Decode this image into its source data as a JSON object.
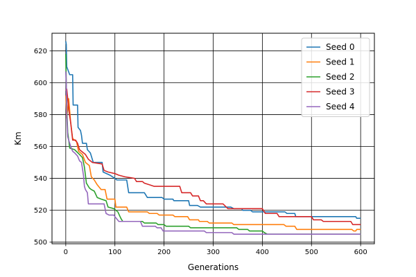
{
  "chart_data": {
    "type": "line",
    "title": "",
    "xlabel": "Generations",
    "ylabel": "Km",
    "xlim": [
      -28,
      628
    ],
    "ylim": [
      499,
      631
    ],
    "xticks": [
      0,
      100,
      200,
      300,
      400,
      500,
      600
    ],
    "yticks": [
      500,
      520,
      540,
      560,
      580,
      600,
      620
    ],
    "grid": true,
    "legend_position": "top-right",
    "series": [
      {
        "name": "Seed 0",
        "color": "#1f77b4",
        "points": [
          [
            0,
            626
          ],
          [
            1,
            624
          ],
          [
            2,
            610
          ],
          [
            8,
            605
          ],
          [
            14,
            605
          ],
          [
            15,
            586
          ],
          [
            24,
            586
          ],
          [
            25,
            572
          ],
          [
            30,
            570
          ],
          [
            32,
            567
          ],
          [
            34,
            562
          ],
          [
            42,
            562
          ],
          [
            44,
            558
          ],
          [
            50,
            556
          ],
          [
            56,
            550
          ],
          [
            74,
            550
          ],
          [
            76,
            544
          ],
          [
            90,
            542
          ],
          [
            100,
            540
          ],
          [
            104,
            539
          ],
          [
            124,
            539
          ],
          [
            128,
            531
          ],
          [
            160,
            531
          ],
          [
            166,
            528
          ],
          [
            196,
            528
          ],
          [
            200,
            527
          ],
          [
            218,
            527
          ],
          [
            220,
            526
          ],
          [
            250,
            526
          ],
          [
            252,
            523
          ],
          [
            268,
            523
          ],
          [
            274,
            522
          ],
          [
            336,
            522
          ],
          [
            342,
            521
          ],
          [
            358,
            521
          ],
          [
            360,
            520
          ],
          [
            376,
            520
          ],
          [
            380,
            519
          ],
          [
            446,
            519
          ],
          [
            450,
            518
          ],
          [
            466,
            518
          ],
          [
            468,
            516
          ],
          [
            590,
            516
          ],
          [
            592,
            515
          ],
          [
            600,
            515
          ]
        ]
      },
      {
        "name": "Seed 1",
        "color": "#ff7f0e",
        "points": [
          [
            0,
            592
          ],
          [
            2,
            578
          ],
          [
            6,
            590
          ],
          [
            10,
            575
          ],
          [
            14,
            565
          ],
          [
            22,
            563
          ],
          [
            26,
            557
          ],
          [
            34,
            555
          ],
          [
            40,
            550
          ],
          [
            48,
            548
          ],
          [
            52,
            541
          ],
          [
            58,
            539
          ],
          [
            64,
            536
          ],
          [
            72,
            533
          ],
          [
            80,
            533
          ],
          [
            84,
            527
          ],
          [
            100,
            527
          ],
          [
            102,
            522
          ],
          [
            124,
            522
          ],
          [
            128,
            519
          ],
          [
            166,
            519
          ],
          [
            170,
            518
          ],
          [
            186,
            518
          ],
          [
            190,
            517
          ],
          [
            218,
            517
          ],
          [
            222,
            516
          ],
          [
            248,
            516
          ],
          [
            252,
            514
          ],
          [
            270,
            514
          ],
          [
            272,
            513
          ],
          [
            288,
            513
          ],
          [
            292,
            512
          ],
          [
            338,
            512
          ],
          [
            342,
            511
          ],
          [
            444,
            511
          ],
          [
            448,
            510
          ],
          [
            466,
            510
          ],
          [
            470,
            508
          ],
          [
            582,
            508
          ],
          [
            586,
            507
          ],
          [
            590,
            507
          ],
          [
            592,
            508
          ],
          [
            600,
            508
          ]
        ]
      },
      {
        "name": "Seed 2",
        "color": "#2ca02c",
        "points": [
          [
            0,
            618
          ],
          [
            1,
            600
          ],
          [
            2,
            584
          ],
          [
            4,
            569
          ],
          [
            8,
            559
          ],
          [
            18,
            558
          ],
          [
            28,
            555
          ],
          [
            34,
            553
          ],
          [
            38,
            547
          ],
          [
            42,
            537
          ],
          [
            48,
            534
          ],
          [
            52,
            533
          ],
          [
            58,
            532
          ],
          [
            64,
            528
          ],
          [
            72,
            527
          ],
          [
            82,
            526
          ],
          [
            86,
            522
          ],
          [
            98,
            521
          ],
          [
            106,
            519
          ],
          [
            112,
            515
          ],
          [
            116,
            513
          ],
          [
            156,
            513
          ],
          [
            160,
            512
          ],
          [
            184,
            512
          ],
          [
            188,
            511
          ],
          [
            200,
            511
          ],
          [
            204,
            510
          ],
          [
            250,
            510
          ],
          [
            254,
            509
          ],
          [
            348,
            509
          ],
          [
            352,
            508
          ],
          [
            370,
            508
          ],
          [
            374,
            507
          ],
          [
            400,
            507
          ],
          [
            404,
            506
          ],
          [
            410,
            505
          ],
          [
            600,
            505
          ]
        ]
      },
      {
        "name": "Seed 3",
        "color": "#d62728",
        "points": [
          [
            0,
            595
          ],
          [
            2,
            596
          ],
          [
            4,
            590
          ],
          [
            6,
            583
          ],
          [
            10,
            575
          ],
          [
            14,
            564
          ],
          [
            20,
            564
          ],
          [
            24,
            562
          ],
          [
            28,
            558
          ],
          [
            40,
            555
          ],
          [
            46,
            552
          ],
          [
            54,
            550
          ],
          [
            74,
            549
          ],
          [
            78,
            545
          ],
          [
            86,
            544
          ],
          [
            100,
            543
          ],
          [
            108,
            542
          ],
          [
            120,
            541
          ],
          [
            140,
            540
          ],
          [
            144,
            538
          ],
          [
            156,
            538
          ],
          [
            160,
            537
          ],
          [
            170,
            536
          ],
          [
            180,
            535
          ],
          [
            232,
            535
          ],
          [
            236,
            531
          ],
          [
            254,
            531
          ],
          [
            258,
            529
          ],
          [
            270,
            529
          ],
          [
            274,
            526
          ],
          [
            280,
            526
          ],
          [
            286,
            524
          ],
          [
            320,
            524
          ],
          [
            330,
            521
          ],
          [
            400,
            521
          ],
          [
            406,
            518
          ],
          [
            430,
            518
          ],
          [
            434,
            516
          ],
          [
            500,
            516
          ],
          [
            504,
            514
          ],
          [
            520,
            514
          ],
          [
            524,
            513
          ],
          [
            580,
            513
          ],
          [
            584,
            511
          ],
          [
            600,
            511
          ]
        ]
      },
      {
        "name": "Seed 4",
        "color": "#9467bd",
        "points": [
          [
            0,
            607
          ],
          [
            1,
            600
          ],
          [
            2,
            580
          ],
          [
            4,
            566
          ],
          [
            8,
            562
          ],
          [
            10,
            560
          ],
          [
            14,
            557
          ],
          [
            18,
            556
          ],
          [
            24,
            554
          ],
          [
            28,
            551
          ],
          [
            32,
            550
          ],
          [
            36,
            542
          ],
          [
            38,
            535
          ],
          [
            40,
            533
          ],
          [
            44,
            531
          ],
          [
            46,
            524
          ],
          [
            78,
            524
          ],
          [
            82,
            518
          ],
          [
            88,
            517
          ],
          [
            98,
            517
          ],
          [
            100,
            516
          ],
          [
            108,
            513
          ],
          [
            152,
            513
          ],
          [
            156,
            510
          ],
          [
            182,
            510
          ],
          [
            186,
            509
          ],
          [
            194,
            509
          ],
          [
            198,
            507
          ],
          [
            282,
            507
          ],
          [
            286,
            506
          ],
          [
            338,
            506
          ],
          [
            342,
            505
          ],
          [
            600,
            505
          ]
        ]
      }
    ]
  }
}
